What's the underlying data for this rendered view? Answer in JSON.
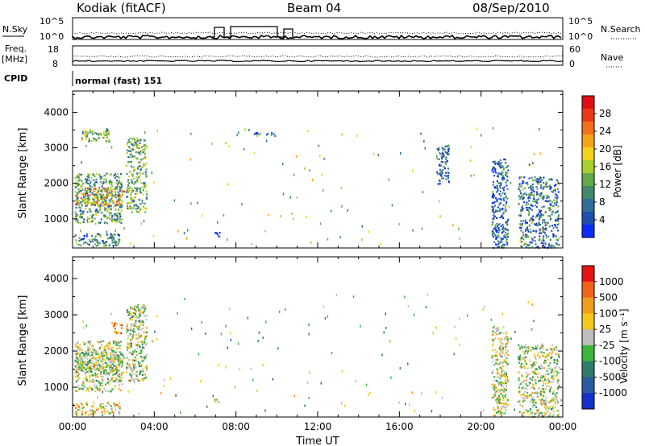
{
  "header": {
    "station": "Kodiak (fitACF)",
    "beam": "Beam 04",
    "date": "08/Sep/2010"
  },
  "strips": {
    "nsky_label": "N.Sky",
    "nsky_ticks": [
      "10^5",
      "10^0"
    ],
    "nsearch_label": "N.Search",
    "nsearch_ticks": [
      "10^5",
      "10^0"
    ],
    "freq_label": "Freq.",
    "freq_unit": "[MHz]",
    "freq_ticks": [
      "18",
      "8"
    ],
    "nave_label": "Nave",
    "nave_ticks": [
      "60",
      "0"
    ],
    "cpid_label": "CPID",
    "cpid_value": "normal (fast) 151"
  },
  "chart_data": [
    {
      "type": "heatmap",
      "name": "power",
      "ylabel": "Slant Range [km]",
      "xlabel": "Time UT",
      "x_ticks": [
        "00:00",
        "04:00",
        "08:00",
        "12:00",
        "16:00",
        "20:00",
        "00:00"
      ],
      "y_ticks": [
        1000,
        2000,
        3000,
        4000
      ],
      "ylim": [
        180,
        4600
      ],
      "xlim_hours": [
        0,
        24
      ],
      "colorbar": {
        "label": "Power [dB]",
        "ticks": [
          "4",
          "8",
          "12",
          "16",
          "20",
          "24",
          "28"
        ],
        "colors": [
          "#0a2cff",
          "#1e4fb0",
          "#2f6e9a",
          "#3f8a6a",
          "#62a84c",
          "#a7cf2e",
          "#f2d21c",
          "#f6a21a",
          "#f2701a",
          "#ec3a18",
          "#e10e14"
        ]
      },
      "echo_regions": [
        {
          "t0": 0.1,
          "t1": 2.5,
          "r0": 1400,
          "r1": 1900,
          "level": 0.7
        },
        {
          "t0": 0.1,
          "t1": 2.4,
          "r0": 900,
          "r1": 2300,
          "level": 0.35
        },
        {
          "t0": 0.1,
          "t1": 2.3,
          "r0": 250,
          "r1": 600,
          "level": 0.25
        },
        {
          "t0": 0.4,
          "t1": 1.8,
          "r0": 3200,
          "r1": 3550,
          "level": 0.4
        },
        {
          "t0": 2.6,
          "t1": 3.6,
          "r0": 1200,
          "r1": 3300,
          "level": 0.4
        },
        {
          "t0": 6.9,
          "t1": 7.2,
          "r0": 500,
          "r1": 700,
          "level": 0.1
        },
        {
          "t0": 8.8,
          "t1": 9.9,
          "r0": 3350,
          "r1": 3450,
          "level": 0.2
        },
        {
          "t0": 20.5,
          "t1": 21.3,
          "r0": 200,
          "r1": 2700,
          "level": 0.2
        },
        {
          "t0": 21.8,
          "t1": 23.8,
          "r0": 200,
          "r1": 2200,
          "level": 0.25
        },
        {
          "t0": 17.8,
          "t1": 18.4,
          "r0": 2000,
          "r1": 3100,
          "level": 0.2
        }
      ]
    },
    {
      "type": "heatmap",
      "name": "velocity",
      "ylabel": "Slant Range [km]",
      "xlabel": "Time UT",
      "x_ticks": [
        "00:00",
        "04:00",
        "08:00",
        "12:00",
        "16:00",
        "20:00",
        "00:00"
      ],
      "y_ticks": [
        1000,
        2000,
        3000,
        4000
      ],
      "ylim": [
        180,
        4600
      ],
      "xlim_hours": [
        0,
        24
      ],
      "colorbar": {
        "label": "Velocity [m s⁻¹]",
        "ticks": [
          "1000",
          "500",
          "100",
          "25",
          "-25",
          "-100",
          "-500",
          "-1000"
        ],
        "colors": [
          "#1432c8",
          "#2a5aa0",
          "#2f7c6a",
          "#3cb53c",
          "#bdbdbd",
          "#f2c81c",
          "#f29c1c",
          "#f0641a",
          "#e61414"
        ]
      },
      "echo_regions": [
        {
          "t0": 0.1,
          "t1": 2.5,
          "r0": 1400,
          "r1": 2000,
          "level": 0.5
        },
        {
          "t0": 0.1,
          "t1": 2.4,
          "r0": 900,
          "r1": 2300,
          "level": 0.5
        },
        {
          "t0": 0.1,
          "t1": 2.3,
          "r0": 250,
          "r1": 600,
          "level": 0.6
        },
        {
          "t0": 1.9,
          "t1": 2.4,
          "r0": 2500,
          "r1": 2800,
          "level": 0.8
        },
        {
          "t0": 2.6,
          "t1": 3.6,
          "r0": 1200,
          "r1": 3300,
          "level": 0.5
        },
        {
          "t0": 6.9,
          "t1": 7.2,
          "r0": 500,
          "r1": 700,
          "level": 0.5
        },
        {
          "t0": 20.5,
          "t1": 21.3,
          "r0": 200,
          "r1": 2700,
          "level": 0.55
        },
        {
          "t0": 21.8,
          "t1": 23.8,
          "r0": 200,
          "r1": 2200,
          "level": 0.5
        }
      ]
    }
  ]
}
